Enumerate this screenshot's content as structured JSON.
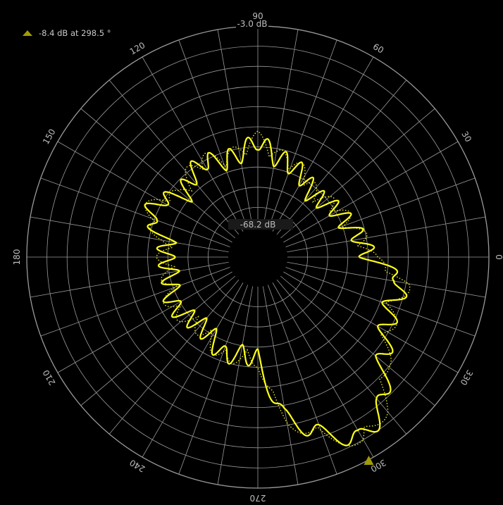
{
  "marker": {
    "readout": "-8.4 dB at  298.5 °"
  },
  "colors": {
    "background": "#000000",
    "grid": "#9a9a9a",
    "trace": "#ffff1a",
    "marker": "#a29b08",
    "label_text": "#bdbdbd"
  },
  "chart_data": {
    "type": "scatter",
    "coordinate_system": "polar",
    "radial_unit": "dB",
    "radial_range": [
      -68.2,
      -3.0
    ],
    "radial_max_label": "-3.0 dB",
    "radial_min_label": "-68.2 dB",
    "angle_tick_labels": [
      "0",
      "30",
      "60",
      "90",
      "120",
      "150",
      "180",
      "210",
      "240",
      "270",
      "300",
      "330"
    ],
    "grid": true,
    "marker_angle_deg": 298.5,
    "marker_value_db": -8.4,
    "series": [
      {
        "angles_deg": [
          0,
          10,
          20,
          30,
          40,
          50,
          60,
          70,
          80,
          90,
          100,
          110,
          120,
          130,
          140,
          150,
          160,
          170,
          180,
          190,
          200,
          210,
          220,
          230,
          240,
          250,
          260,
          270,
          280,
          290,
          300,
          310,
          320,
          330,
          340,
          350
        ],
        "values_db": [
          -42,
          -44,
          -47,
          -48,
          -50,
          -51,
          -48,
          -46,
          -45,
          -40,
          -44,
          -45,
          -42,
          -44,
          -47,
          -41,
          -40,
          -48,
          -48,
          -49,
          -48,
          -46,
          -48,
          -49,
          -48,
          -44,
          -46,
          -45,
          -25,
          -17,
          -10,
          -15,
          -25,
          -30,
          -32,
          -30
        ]
      }
    ]
  }
}
